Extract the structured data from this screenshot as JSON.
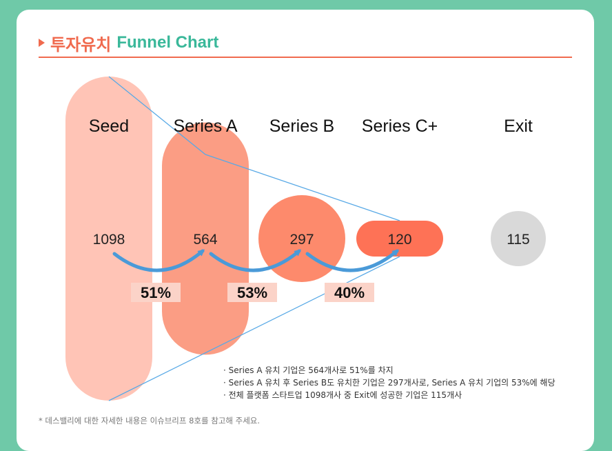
{
  "header": {
    "title_ko": "투자유치",
    "title_en": "Funnel Chart"
  },
  "colors": {
    "seed": "#ffc4b6",
    "series_a": "#fb9d84",
    "series_b": "#fd8a6c",
    "series_c": "#fe7256",
    "exit": "#d9d9d9",
    "arrow": "#4a9ad8",
    "line": "#58a9e6",
    "pct_bg": "#fbd3c8"
  },
  "chart_data": {
    "type": "funnel",
    "title": "",
    "categories": [
      "Seed",
      "Series A",
      "Series B",
      "Series C+",
      "Exit"
    ],
    "values": [
      1098,
      564,
      297,
      120,
      115
    ],
    "conversion_rates": [
      "51%",
      "53%",
      "40%"
    ]
  },
  "notes": [
    "· Series A 유치 기업은 564개사로 51%를 차지",
    "· Series A 유치 후 Series B도 유치한 기업은 297개사로, Series A 유치 기업의 53%에 해당",
    "· 전체 플랫폼 스타트업 1098개사 중 Exit에 성공한 기업은 115개사"
  ],
  "footnote": "* 데스밸리에 대한 자세한 내용은 이슈브리프 8호를 참고해 주세요."
}
